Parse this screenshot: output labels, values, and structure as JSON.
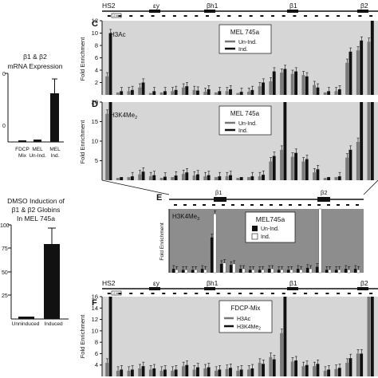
{
  "left_top": {
    "title_line1": "β1 & β2",
    "title_line2": "mRNA Expression",
    "tick_top": "0",
    "tick_bottom": "0",
    "cats": [
      "FDCP",
      "Mix",
      "MEL",
      "Un-Ind.",
      "MEL",
      "Ind."
    ]
  },
  "left_bottom": {
    "title_line1": "DMSO Induction of",
    "title_line2": "β1 & β2 Globins",
    "title_line3": "In MEL 745a",
    "ticks": [
      "100",
      "75",
      "50",
      "25"
    ],
    "cats": [
      "Unninduced",
      "Induced"
    ]
  },
  "map_labels": {
    "hs2": "HS2",
    "ey": "εy",
    "bh1": "βh1",
    "b1": "β1",
    "b2": "β2",
    "scale": "2 kb"
  },
  "panel_c": {
    "letter": "C",
    "mark": "H3Ac",
    "legend_title": "MEL 745a",
    "legend_a": "Un-Ind.",
    "legend_b": "Ind.",
    "ylabel": "Fold Enrichment",
    "ticks": [
      "12",
      "10",
      "8",
      "6",
      "4",
      "2"
    ]
  },
  "panel_d": {
    "letter": "D",
    "mark": "H3K4Me",
    "mark_sub": "2",
    "legend_title": "MEL 745a",
    "legend_a": "Un-Ind.",
    "legend_b": "Ind.",
    "ylabel": "Fold Enrichment",
    "ticks": [
      "20",
      "15",
      "10",
      "5"
    ]
  },
  "panel_e": {
    "letter": "E",
    "mark": "H3K4Me",
    "mark_sub": "3",
    "legend_title": "MEL745a",
    "legend_a": "Un-Ind.",
    "legend_b": "Ind.",
    "ylabel": "Fold Enrichment",
    "b1": "β1",
    "b2": "β2"
  },
  "panel_f": {
    "letter": "F",
    "legend_title": "FDCP-Mix",
    "legend_a": "H3Ac",
    "legend_b": "H3K4Me",
    "legend_b_sub": "2",
    "ylabel": "Fold Enrichment",
    "ticks": [
      "16",
      "14",
      "12",
      "10",
      "8",
      "6",
      "4"
    ]
  },
  "chart_data": [
    {
      "type": "bar",
      "title": "β1 & β2 mRNA Expression",
      "categories": [
        "FDCP Mix",
        "MEL Un-Ind.",
        "MEL Ind."
      ],
      "values": [
        0.02,
        0.05,
        1.0
      ],
      "errors": [
        0,
        0,
        0.3
      ]
    },
    {
      "type": "bar",
      "title": "DMSO Induction of β1 & β2 Globins In MEL 745a",
      "categories": [
        "Unninduced",
        "Induced"
      ],
      "values": [
        2,
        79
      ],
      "errors": [
        0,
        16
      ],
      "ylim": [
        0,
        100
      ]
    },
    {
      "type": "bar",
      "panel": "C",
      "ylabel": "Fold Enrichment",
      "ylim": [
        0,
        12
      ],
      "series": [
        {
          "name": "Un-Ind.",
          "values": [
            3,
            0.4,
            0.6,
            1.2,
            0.3,
            0.4,
            0.6,
            1.2,
            0.8,
            0.5,
            0.4,
            0.6,
            0.3,
            0.5,
            1.4,
            2.2,
            3.6,
            3.4,
            3.2,
            1.6,
            0.4,
            0.6,
            5.2,
            7.2,
            8.6
          ]
        },
        {
          "name": "Ind.",
          "values": [
            10,
            0.6,
            0.8,
            2.0,
            0.6,
            0.6,
            0.8,
            1.4,
            0.7,
            0.9,
            0.6,
            0.9,
            0.5,
            0.8,
            2.0,
            3.8,
            4.2,
            3.8,
            3.0,
            1.2,
            0.6,
            0.9,
            7.0,
            8.8,
            12
          ]
        }
      ]
    },
    {
      "type": "bar",
      "panel": "D",
      "ylabel": "Fold Enrichment",
      "ylim": [
        0,
        20
      ],
      "series": [
        {
          "name": "Un-Ind.",
          "values": [
            17,
            0.6,
            0.8,
            1.5,
            1.0,
            0.6,
            0.8,
            1.6,
            1.2,
            1.0,
            0.8,
            1.0,
            0.6,
            0.8,
            1.0,
            4.8,
            7.8,
            6.0,
            4.8,
            2.0,
            0.6,
            0.8,
            5.8,
            9.8,
            20
          ]
        },
        {
          "name": "Ind.",
          "values": [
            20,
            0.8,
            1.0,
            2.2,
            1.3,
            0.9,
            1.2,
            2.0,
            1.5,
            1.3,
            1.0,
            1.3,
            0.8,
            1.0,
            1.4,
            6.2,
            20,
            7.0,
            5.4,
            2.8,
            0.8,
            1.0,
            7.8,
            20,
            20
          ]
        }
      ]
    },
    {
      "type": "bar",
      "panel": "E",
      "ylabel": "Fold Enrichment",
      "series": [
        {
          "name": "Un-Ind.",
          "values": [
            0.4,
            0.3,
            0.3,
            0.4,
            3.6,
            0.9,
            0.8,
            0.4,
            0.3,
            0.3,
            0.4,
            0.3,
            0.3,
            0.4,
            0.5,
            0.6,
            0.3,
            0.3,
            0.4,
            0.4
          ]
        },
        {
          "name": "Ind.",
          "values": [
            0.3,
            0.3,
            0.3,
            0.3,
            6.0,
            1.0,
            0.9,
            0.4,
            0.3,
            0.3,
            0.4,
            0.3,
            0.3,
            0.3,
            0.4,
            6.5,
            0.3,
            0.3,
            0.3,
            0.3
          ]
        }
      ]
    },
    {
      "type": "bar",
      "panel": "F",
      "ylabel": "Fold Enrichment",
      "ylim": [
        2,
        16
      ],
      "series": [
        {
          "name": "H3Ac",
          "values": [
            4.4,
            3.0,
            3.0,
            3.4,
            3.2,
            3.0,
            3.0,
            3.8,
            3.2,
            3.4,
            3.0,
            3.3,
            3.0,
            3.2,
            4.4,
            5.4,
            9.6,
            4.6,
            3.8,
            3.8,
            3.0,
            3.3,
            4.4,
            6.0,
            16
          ]
        },
        {
          "name": "H3K4Me2",
          "values": [
            16,
            3.2,
            3.2,
            3.8,
            3.4,
            3.2,
            3.2,
            4.0,
            3.6,
            3.6,
            3.2,
            3.5,
            3.2,
            3.4,
            4.2,
            5.0,
            16,
            4.8,
            4.0,
            4.2,
            3.2,
            3.5,
            5.2,
            6.0,
            16
          ]
        }
      ]
    }
  ]
}
